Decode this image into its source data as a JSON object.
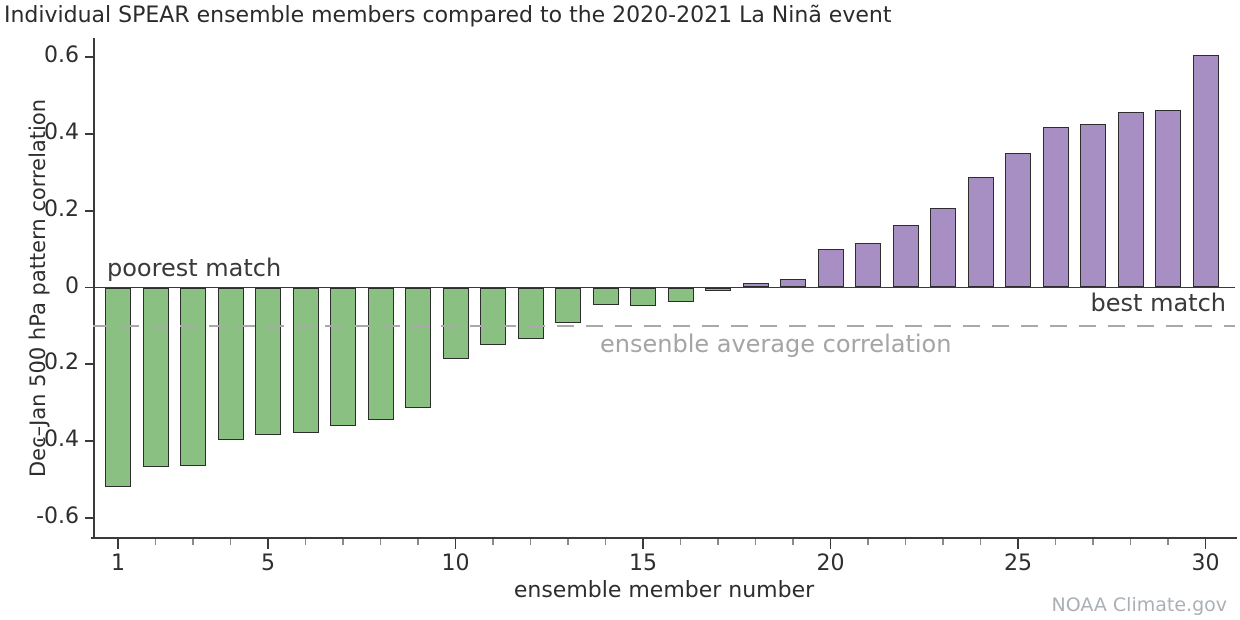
{
  "title": "Individual SPEAR ensemble members compared to the 2020-2021 La Ninã event",
  "annotations": {
    "poorest": "poorest match",
    "best": "best match",
    "average_line_label": "ensenble average correlation"
  },
  "credit": "NOAA Climate.gov",
  "chart_data": {
    "type": "bar",
    "title": "Individual SPEAR ensemble members compared to the 2020-2021 La Ninã event",
    "xlabel": "ensemble member number",
    "ylabel": "Dec–Jan 500 hPa pattern correlation",
    "categories": [
      1,
      2,
      3,
      4,
      5,
      6,
      7,
      8,
      9,
      10,
      11,
      12,
      13,
      14,
      15,
      16,
      17,
      18,
      19,
      20,
      21,
      22,
      23,
      24,
      25,
      26,
      27,
      28,
      29,
      30
    ],
    "values": [
      -0.52,
      -0.468,
      -0.465,
      -0.398,
      -0.383,
      -0.38,
      -0.36,
      -0.346,
      -0.315,
      -0.185,
      -0.15,
      -0.135,
      -0.092,
      -0.046,
      -0.048,
      -0.039,
      -0.01,
      0.013,
      0.022,
      0.1,
      0.116,
      0.164,
      0.207,
      0.288,
      0.35,
      0.418,
      0.426,
      0.458,
      0.462,
      0.605
    ],
    "ensemble_average_correlation": -0.1,
    "ylim": [
      -0.65,
      0.65
    ],
    "yticks": [
      {
        "v": 0.6,
        "label": "0.6"
      },
      {
        "v": 0.4,
        "label": "0.4"
      },
      {
        "v": 0.2,
        "label": "0.2"
      },
      {
        "v": 0.0,
        "label": "0"
      },
      {
        "v": -0.2,
        "label": "-0.2"
      },
      {
        "v": -0.4,
        "label": "-0.4"
      },
      {
        "v": -0.6,
        "label": "-0.6"
      }
    ],
    "xticks_labeled": [
      {
        "v": 1,
        "label": "1"
      },
      {
        "v": 5,
        "label": "5"
      },
      {
        "v": 10,
        "label": "10"
      },
      {
        "v": 15,
        "label": "15"
      },
      {
        "v": 20,
        "label": "20"
      },
      {
        "v": 25,
        "label": "25"
      },
      {
        "v": 30,
        "label": "30"
      }
    ],
    "grid": false,
    "legend": null,
    "colors": {
      "negative_bar": "#8bc083",
      "positive_bar": "#a78fc4",
      "bar_border": "#2d2d2d",
      "axis": "#3a3a3a",
      "dashed_line": "#a9a9a9"
    }
  }
}
